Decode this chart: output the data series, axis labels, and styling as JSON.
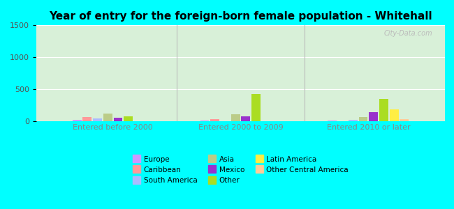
{
  "title": "Year of entry for the foreign-born female population - Whitehall",
  "background_color": "#00FFFF",
  "plot_bg": "#d8f0d8",
  "categories": [
    "Entered before 2000",
    "Entered 2000 to 2009",
    "Entered 2010 or later"
  ],
  "series_order": [
    "Europe",
    "Caribbean",
    "South America",
    "Asia",
    "Mexico",
    "Other",
    "Latin America",
    "Other Central America"
  ],
  "series": {
    "Europe": [
      18,
      12,
      8
    ],
    "Caribbean": [
      65,
      38,
      5
    ],
    "South America": [
      40,
      5,
      18
    ],
    "Asia": [
      115,
      105,
      60
    ],
    "Mexico": [
      50,
      75,
      140
    ],
    "Other": [
      75,
      425,
      350
    ],
    "Latin America": [
      0,
      0,
      190
    ],
    "Other Central America": [
      0,
      0,
      28
    ]
  },
  "colors": {
    "Europe": "#cc99ff",
    "Caribbean": "#ff9999",
    "South America": "#aabbff",
    "Asia": "#bbcc88",
    "Mexico": "#9933cc",
    "Other": "#aadd22",
    "Latin America": "#ffee44",
    "Other Central America": "#ffcc99"
  },
  "ylim": [
    0,
    1500
  ],
  "yticks": [
    0,
    500,
    1000,
    1500
  ],
  "watermark": "City-Data.com",
  "xlabel_color": "#888888",
  "legend_layout": [
    [
      "Europe",
      "Asia",
      "Latin America"
    ],
    [
      "Caribbean",
      "Mexico",
      "Other Central America"
    ],
    [
      "South America",
      "Other",
      ""
    ]
  ]
}
